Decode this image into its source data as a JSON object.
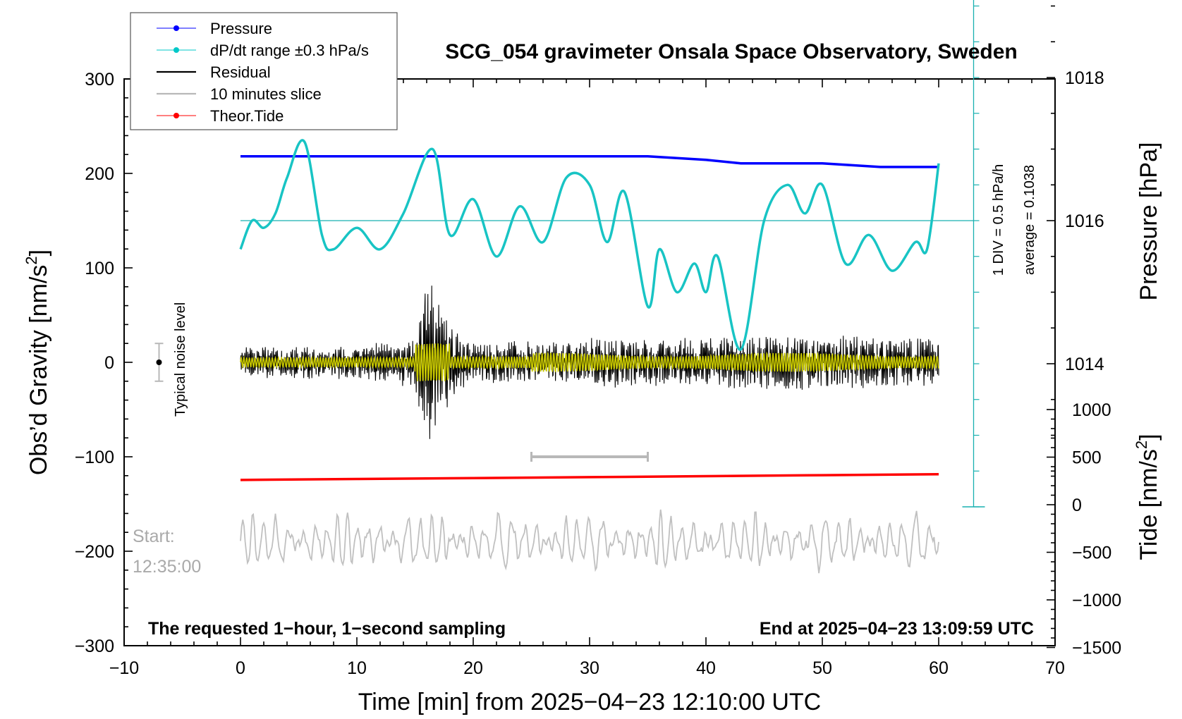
{
  "chart_data": {
    "type": "line",
    "title": "SCG_054 gravimeter Onsala Space Observatory, Sweden",
    "xlabel": "Time [min] from 2025−04−23 12:10:00 UTC",
    "ylabel_left": "Obs’d Gravity [nm/s",
    "ylabel_left_sup": "2",
    "ylabel_left_close": "]",
    "ylabel_right_pressure": "Pressure [hPa]",
    "ylabel_right_tide": "Tide [nm/s",
    "ylabel_right_tide_sup": "2",
    "ylabel_right_tide_close": "]",
    "xlim": [
      -10,
      70
    ],
    "ylim": [
      -300,
      300
    ],
    "x_ticks": [
      "−10",
      "0",
      "10",
      "20",
      "30",
      "40",
      "50",
      "60",
      "70"
    ],
    "y_ticks": [
      "300",
      "200",
      "100",
      "0",
      "−100",
      "−200",
      "−300"
    ],
    "pressure_ticks": [
      "1018",
      "1016",
      "1014"
    ],
    "pressure_range": [
      1012,
      1020
    ],
    "tide_ticks": [
      "1000",
      "500",
      "0",
      "−500",
      "−1000",
      "−1500"
    ],
    "tide_range": [
      -1500,
      1000
    ],
    "legend": {
      "placement": "top-left",
      "entries": [
        {
          "label": "Pressure",
          "color": "#0000ff",
          "marker": true
        },
        {
          "label": "dP/dt range ±0.3 hPa/s",
          "color": "#00c8c8",
          "marker": true
        },
        {
          "label": "Residual",
          "color": "#000000",
          "marker": false
        },
        {
          "label": "10 minutes slice",
          "color": "#b8b8b8",
          "marker": false
        },
        {
          "label": "Theor.Tide",
          "color": "#ff0000",
          "marker": true
        }
      ]
    },
    "colors": {
      "pressure": "#0000ff",
      "dpdt": "#18c4c4",
      "dpdt_ref": "#18b0b0",
      "residual": "#000000",
      "filtered": "#c8c800",
      "slice": "#c0c0c0",
      "tide": "#ff0000",
      "slice_bar": "#b8b8b8",
      "noise_bar": "#b8b8b8"
    },
    "series": [
      {
        "name": "Pressure",
        "unit": "hPa",
        "x": [
          0,
          5,
          10,
          15,
          20,
          25,
          30,
          35,
          40,
          43,
          45,
          50,
          55,
          60
        ],
        "values": [
          1016.9,
          1016.9,
          1016.9,
          1016.9,
          1016.9,
          1016.9,
          1016.9,
          1016.9,
          1016.85,
          1016.8,
          1016.8,
          1016.8,
          1016.75,
          1016.75
        ]
      },
      {
        "name": "dP/dt range ±0.3 hPa/s",
        "unit": "hPa (plotted)",
        "x": [
          0,
          1,
          2,
          3,
          4,
          5.5,
          7,
          8,
          10,
          12,
          14,
          16.5,
          18,
          20,
          22,
          24,
          26,
          28,
          30,
          31.5,
          33,
          35,
          36,
          37.5,
          39,
          40,
          41,
          43,
          45,
          47,
          48.5,
          50,
          52,
          54,
          56,
          58,
          59,
          60
        ],
        "values": [
          1015.6,
          1016.0,
          1015.9,
          1016.1,
          1016.6,
          1017.1,
          1015.8,
          1015.6,
          1015.9,
          1015.6,
          1016.1,
          1017.0,
          1015.8,
          1016.3,
          1015.5,
          1016.2,
          1015.7,
          1016.6,
          1016.5,
          1015.7,
          1016.4,
          1014.8,
          1015.6,
          1015.0,
          1015.4,
          1015.0,
          1015.5,
          1014.2,
          1016.0,
          1016.5,
          1016.1,
          1016.5,
          1015.4,
          1015.8,
          1015.3,
          1015.7,
          1015.6,
          1016.8
        ]
      },
      {
        "name": "Theor.Tide",
        "unit": "nm/s2",
        "x": [
          0,
          10,
          20,
          30,
          40,
          50,
          60
        ],
        "values": [
          260,
          270,
          280,
          290,
          300,
          310,
          320
        ]
      },
      {
        "name": "Residual",
        "unit": "nm/s2",
        "envelope_x": [
          0,
          10,
          15,
          16,
          17,
          18,
          20,
          25,
          30,
          40,
          45,
          50,
          55,
          60
        ],
        "envelope_amp": [
          20,
          20,
          30,
          110,
          90,
          50,
          25,
          25,
          30,
          30,
          35,
          35,
          30,
          30
        ]
      }
    ],
    "dpdt_reference_level": 1016,
    "dpdt_scale_bar": {
      "top": 1020,
      "bottom": 1012,
      "divisions": 16
    },
    "noise_level_bar": {
      "x": -7,
      "y": 0,
      "range": [
        -20,
        20
      ]
    },
    "slice_marker": {
      "x_start": 25,
      "x_end": 35,
      "y": -100
    }
  },
  "annotations": {
    "typical_noise": "Typical noise level",
    "start_label": "Start:",
    "start_time": "12:35:00",
    "div_note": "1 DIV = 0.5 hPa/h",
    "average_note": "average = 0.1038",
    "bottom_left_note": "The requested 1−hour, 1−second sampling",
    "bottom_right_note": "End at 2025−04−23 13:09:59 UTC"
  }
}
